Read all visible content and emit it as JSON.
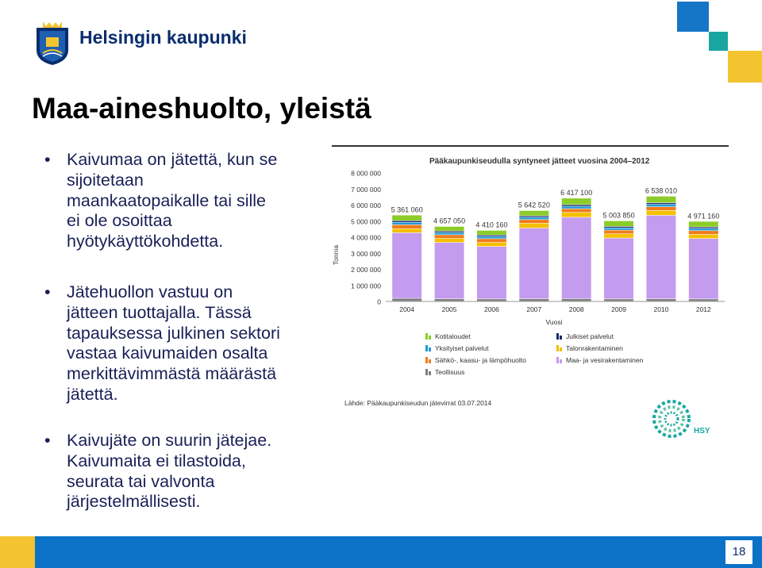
{
  "header": {
    "brand": "Helsingin kaupunki",
    "logo_icon": "helsinki-coat-of-arms"
  },
  "slide": {
    "title": "Maa-aineshuolto, yleistä",
    "bullets": [
      {
        "lines": [
          "Kaivumaa on jätettä, kun se",
          "sijoitetaan",
          "maankaatopaikalle tai sille",
          "ei ole osoittaa",
          "hyötykäyttökohdetta."
        ]
      },
      {
        "lines": [
          "Jätehuollon vastuu on",
          "jätteen tuottajalla. Tässä",
          "tapauksessa julkinen sektori",
          "vastaa kaivumaiden osalta",
          "merkittävimmästä määrästä",
          "jätettä."
        ]
      },
      {
        "lines": [
          "Kaivujäte on suurin jätejae.",
          "Kaivumaita ei tilastoida,",
          "seurata tai valvonta",
          "järjestelmällisesti."
        ]
      }
    ],
    "bullet_glyph": "•",
    "page_number": "18"
  },
  "colors": {
    "text": "#1a1f56",
    "footer": "#0b72c7",
    "yellow": "#f4c430",
    "teal": "#1aa6a0",
    "blue_sq": "#1575c7"
  },
  "chart_data": {
    "type": "bar",
    "stacked": true,
    "title": "Pääkaupunkiseudulla syntyneet jätteet vuosina 2004–2012",
    "xlabel": "Vuosi",
    "ylabel": "Tonnia",
    "ylim": [
      0,
      8000000
    ],
    "yticks": [
      "0",
      "1 000 000",
      "2 000 000",
      "3 000 000",
      "4 000 000",
      "5 000 000",
      "6 000 000",
      "7 000 000",
      "8 000 000"
    ],
    "categories": [
      "2004",
      "2005",
      "2006",
      "2007",
      "2008",
      "2009",
      "2010",
      "2012"
    ],
    "totals": [
      5361060,
      4657050,
      4410160,
      5642520,
      6417100,
      5003850,
      6538010,
      4971160
    ],
    "total_labels": [
      "5 361 060",
      "4 657 050",
      "4 410 160",
      "5 642 520",
      "6 417 100",
      "5 003 850",
      "6 538 010",
      "4 971 160"
    ],
    "series": [
      {
        "name": "Teollisuus",
        "color": "#7f7f7f",
        "values": [
          180000,
          150000,
          140000,
          150000,
          160000,
          140000,
          150000,
          140000
        ]
      },
      {
        "name": "Maa- ja vesirakentaminen",
        "color": "#c39bef",
        "values": [
          4081060,
          3507050,
          3270160,
          4402520,
          5067100,
          3793850,
          5198010,
          3761160
        ]
      },
      {
        "name": "Talonrakentaminen",
        "color": "#f5c000",
        "values": [
          250000,
          250000,
          250000,
          300000,
          300000,
          260000,
          300000,
          260000
        ]
      },
      {
        "name": "Sähkö-, kaasu- ja lämpöhuolto",
        "color": "#f07c1a",
        "values": [
          250000,
          230000,
          230000,
          230000,
          230000,
          230000,
          230000,
          230000
        ]
      },
      {
        "name": "Yksityiset palvelut",
        "color": "#1e9ad6",
        "values": [
          150000,
          140000,
          140000,
          140000,
          150000,
          140000,
          150000,
          140000
        ]
      },
      {
        "name": "Julkiset palvelut",
        "color": "#1a2a6c",
        "values": [
          100000,
          90000,
          90000,
          90000,
          100000,
          90000,
          100000,
          90000
        ]
      },
      {
        "name": "Kotitaloudet",
        "color": "#8ccc2a",
        "values": [
          350000,
          290000,
          290000,
          330000,
          410000,
          350000,
          410000,
          350000
        ]
      }
    ],
    "legend": {
      "placement": "bottom",
      "left": [
        "Kotitaloudet",
        "Yksityiset palvelut",
        "Sähkö-, kaasu- ja lämpöhuolto",
        "Teollisuus"
      ],
      "right": [
        "Julkiset palvelut",
        "Talonrakentaminen",
        "Maa- ja vesirakentaminen"
      ]
    },
    "source": "Lähde: Pääkaupunkiseudun jätevirrat 03.07.2014",
    "grid": false
  },
  "hsy": {
    "label": "HSY"
  }
}
